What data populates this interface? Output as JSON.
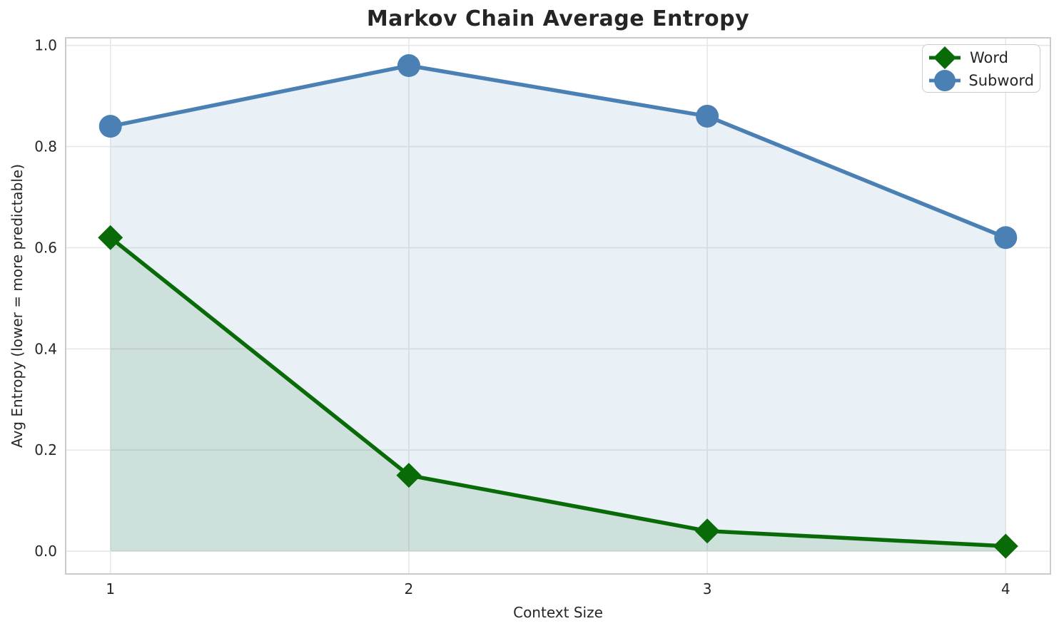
{
  "chart_data": {
    "type": "line",
    "title": "Markov Chain Average Entropy",
    "xlabel": "Context Size",
    "ylabel": "Avg Entropy (lower = more predictable)",
    "x": [
      1,
      2,
      3,
      4
    ],
    "xticks": [
      "1",
      "2",
      "3",
      "4"
    ],
    "yticks": [
      0.0,
      0.2,
      0.4,
      0.6,
      0.8,
      1.0
    ],
    "xlim": [
      0.85,
      4.15
    ],
    "ylim": [
      -0.045,
      1.015
    ],
    "grid": true,
    "legend_position": "upper right",
    "series": [
      {
        "name": "Word",
        "marker": "diamond",
        "color": "#086b08",
        "fill_color": "rgba(8,107,8,0.12)",
        "values": [
          0.62,
          0.15,
          0.04,
          0.01
        ],
        "fill_to_zero": true
      },
      {
        "name": "Subword",
        "marker": "circle",
        "color": "#4a80b4",
        "fill_color": "rgba(74,128,180,0.12)",
        "values": [
          0.84,
          0.96,
          0.86,
          0.62
        ],
        "fill_to_zero": true
      }
    ]
  }
}
